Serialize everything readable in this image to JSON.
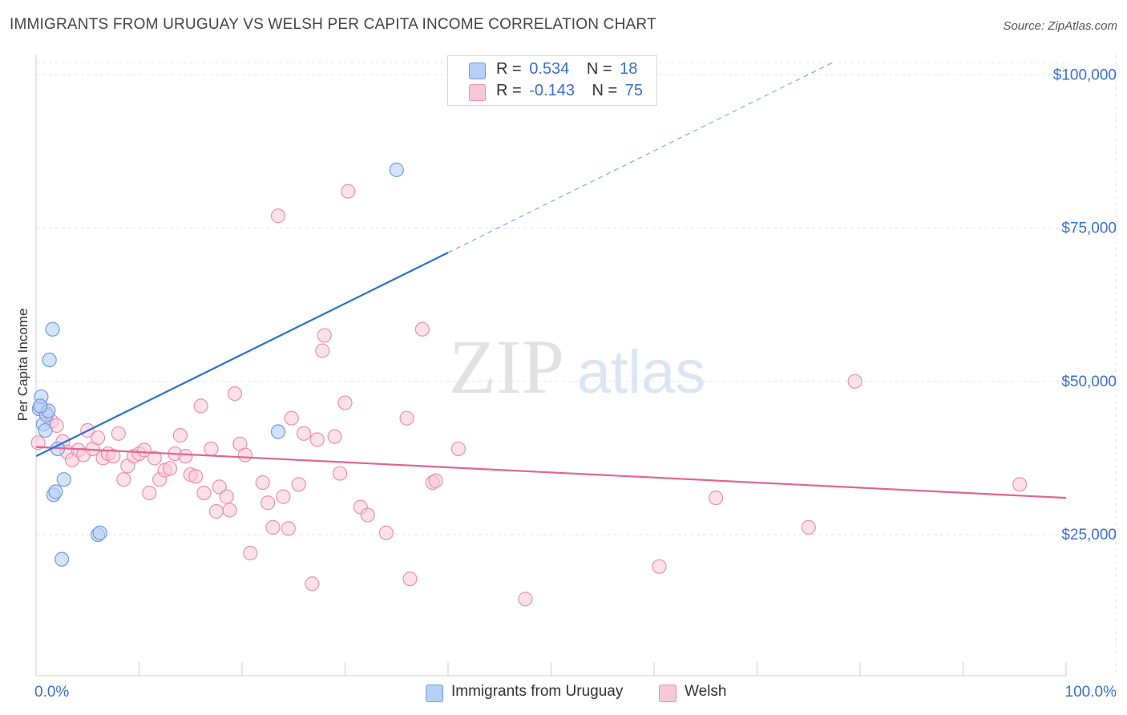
{
  "header": {
    "title": "IMMIGRANTS FROM URUGUAY VS WELSH PER CAPITA INCOME CORRELATION CHART",
    "source": "Source: ZipAtlas.com"
  },
  "watermark": {
    "zip": "ZIP",
    "atlas": "atlas"
  },
  "legend": {
    "rows": [
      {
        "r_label": "R =",
        "r_value": "0.534",
        "n_label": "N =",
        "n_value": "18"
      },
      {
        "r_label": "R =",
        "r_value": "-0.143",
        "n_label": "N =",
        "n_value": "75"
      }
    ]
  },
  "bottom_legend": {
    "uruguay": "Immigrants from Uruguay",
    "welsh": "Welsh"
  },
  "colors": {
    "uruguay_fill": "#b7d0f5",
    "uruguay_stroke": "#6f9be0",
    "uruguay_line": "#2b6fd6",
    "welsh_fill": "#f9c8d7",
    "welsh_stroke": "#e98fae",
    "welsh_line": "#e2648f",
    "tick_label": "#3a6fcf",
    "grid": "#e3e3e3"
  },
  "chart_data": {
    "type": "scatter",
    "ylabel": "Per Capita Income",
    "xlabel": "",
    "xlim": [
      0,
      100
    ],
    "ylim": [
      2000,
      102000
    ],
    "x_tick_labels": [
      "0.0%",
      "100.0%"
    ],
    "y_ticks": [
      25000,
      50000,
      75000,
      100000
    ],
    "y_tick_labels": [
      "$25,000",
      "$50,000",
      "$75,000",
      "$100,000"
    ],
    "grid": true,
    "series": [
      {
        "name": "Immigrants from Uruguay",
        "trend": {
          "x0": 0,
          "y0": 37800,
          "x1": 40,
          "y1": 71000,
          "dashed_to_x": 100
        },
        "points": [
          {
            "x": 0.3,
            "y": 45500
          },
          {
            "x": 0.5,
            "y": 47500
          },
          {
            "x": 0.7,
            "y": 43000
          },
          {
            "x": 0.9,
            "y": 42000
          },
          {
            "x": 1.0,
            "y": 44500
          },
          {
            "x": 1.2,
            "y": 45200
          },
          {
            "x": 1.3,
            "y": 53500
          },
          {
            "x": 1.6,
            "y": 58500
          },
          {
            "x": 1.7,
            "y": 31500
          },
          {
            "x": 1.9,
            "y": 32000
          },
          {
            "x": 2.1,
            "y": 39000
          },
          {
            "x": 2.5,
            "y": 21000
          },
          {
            "x": 2.7,
            "y": 34000
          },
          {
            "x": 6.0,
            "y": 25000
          },
          {
            "x": 6.2,
            "y": 25300
          },
          {
            "x": 23.5,
            "y": 41800
          },
          {
            "x": 35.0,
            "y": 84500
          },
          {
            "x": 0.4,
            "y": 46000
          }
        ]
      },
      {
        "name": "Welsh",
        "trend": {
          "x0": 0,
          "y0": 39300,
          "x1": 100,
          "y1": 31000
        },
        "points": [
          {
            "x": 0.2,
            "y": 40000
          },
          {
            "x": 0.5,
            "y": 45800
          },
          {
            "x": 1.0,
            "y": 44800
          },
          {
            "x": 1.5,
            "y": 43500
          },
          {
            "x": 2.0,
            "y": 42800
          },
          {
            "x": 2.6,
            "y": 40200
          },
          {
            "x": 3.0,
            "y": 38500
          },
          {
            "x": 3.5,
            "y": 37200
          },
          {
            "x": 4.1,
            "y": 38800
          },
          {
            "x": 4.6,
            "y": 38000
          },
          {
            "x": 5.0,
            "y": 42000
          },
          {
            "x": 5.5,
            "y": 39000
          },
          {
            "x": 6.0,
            "y": 40800
          },
          {
            "x": 6.5,
            "y": 37500
          },
          {
            "x": 7.0,
            "y": 38200
          },
          {
            "x": 7.5,
            "y": 37800
          },
          {
            "x": 8.0,
            "y": 41500
          },
          {
            "x": 8.5,
            "y": 34000
          },
          {
            "x": 8.9,
            "y": 36200
          },
          {
            "x": 9.5,
            "y": 37800
          },
          {
            "x": 10.0,
            "y": 38200
          },
          {
            "x": 10.5,
            "y": 38800
          },
          {
            "x": 11.0,
            "y": 31800
          },
          {
            "x": 11.5,
            "y": 37500
          },
          {
            "x": 12.0,
            "y": 34000
          },
          {
            "x": 12.5,
            "y": 35500
          },
          {
            "x": 13.0,
            "y": 35800
          },
          {
            "x": 13.5,
            "y": 38200
          },
          {
            "x": 14.0,
            "y": 41200
          },
          {
            "x": 14.5,
            "y": 37800
          },
          {
            "x": 15.0,
            "y": 34800
          },
          {
            "x": 15.5,
            "y": 34500
          },
          {
            "x": 16.0,
            "y": 46000
          },
          {
            "x": 16.3,
            "y": 31800
          },
          {
            "x": 17.0,
            "y": 39000
          },
          {
            "x": 17.5,
            "y": 28800
          },
          {
            "x": 17.8,
            "y": 32800
          },
          {
            "x": 18.5,
            "y": 31200
          },
          {
            "x": 18.8,
            "y": 29000
          },
          {
            "x": 19.3,
            "y": 48000
          },
          {
            "x": 19.8,
            "y": 39800
          },
          {
            "x": 20.3,
            "y": 38000
          },
          {
            "x": 20.8,
            "y": 22000
          },
          {
            "x": 22.0,
            "y": 33500
          },
          {
            "x": 22.5,
            "y": 30200
          },
          {
            "x": 23.0,
            "y": 26200
          },
          {
            "x": 23.5,
            "y": 77000
          },
          {
            "x": 24.0,
            "y": 31200
          },
          {
            "x": 24.5,
            "y": 26000
          },
          {
            "x": 24.8,
            "y": 44000
          },
          {
            "x": 25.5,
            "y": 33200
          },
          {
            "x": 26.0,
            "y": 41500
          },
          {
            "x": 26.8,
            "y": 17000
          },
          {
            "x": 27.3,
            "y": 40500
          },
          {
            "x": 27.8,
            "y": 55000
          },
          {
            "x": 28.0,
            "y": 57500
          },
          {
            "x": 29.0,
            "y": 41000
          },
          {
            "x": 29.5,
            "y": 35000
          },
          {
            "x": 30.0,
            "y": 46500
          },
          {
            "x": 30.3,
            "y": 81000
          },
          {
            "x": 31.5,
            "y": 29500
          },
          {
            "x": 32.2,
            "y": 28200
          },
          {
            "x": 34.0,
            "y": 25300
          },
          {
            "x": 36.0,
            "y": 44000
          },
          {
            "x": 36.3,
            "y": 17800
          },
          {
            "x": 37.5,
            "y": 58500
          },
          {
            "x": 38.5,
            "y": 33500
          },
          {
            "x": 38.8,
            "y": 33800
          },
          {
            "x": 41.0,
            "y": 39000
          },
          {
            "x": 47.5,
            "y": 14500
          },
          {
            "x": 60.5,
            "y": 19800
          },
          {
            "x": 66.0,
            "y": 31000
          },
          {
            "x": 75.0,
            "y": 26200
          },
          {
            "x": 79.5,
            "y": 50000
          },
          {
            "x": 95.5,
            "y": 33200
          }
        ]
      }
    ]
  }
}
